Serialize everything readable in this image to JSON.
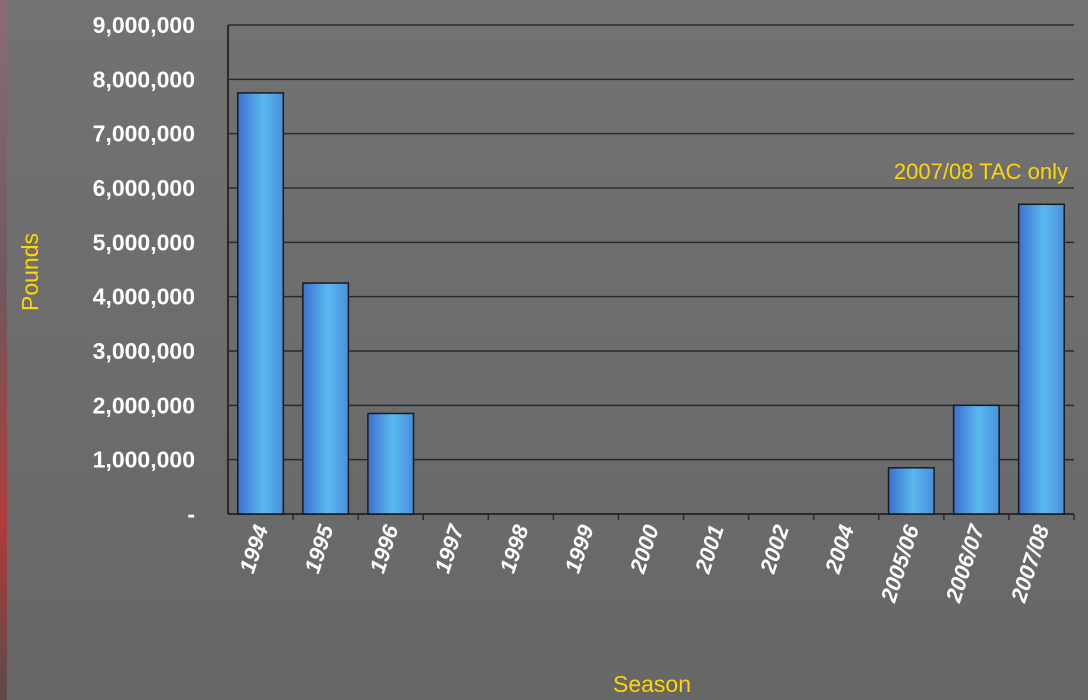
{
  "colors": {
    "background": "#6e6e6e",
    "gridline": "#2a2a2a",
    "bar_fill_dark": "#3d6fd0",
    "bar_fill_light": "#5ab9ee",
    "bar_border": "#1a1a1a",
    "label_yellow": "#ffd700",
    "tick_text": "#ffffff"
  },
  "chart_data": {
    "type": "bar",
    "title": "",
    "xlabel": "Season",
    "ylabel": "Pounds",
    "ylim": [
      0,
      9000000
    ],
    "y_ticks": [
      0,
      1000000,
      2000000,
      3000000,
      4000000,
      5000000,
      6000000,
      7000000,
      8000000,
      9000000
    ],
    "y_tick_labels": [
      "-",
      "1,000,000",
      "2,000,000",
      "3,000,000",
      "4,000,000",
      "5,000,000",
      "6,000,000",
      "7,000,000",
      "8,000,000",
      "9,000,000"
    ],
    "categories": [
      "1994",
      "1995",
      "1996",
      "1997",
      "1998",
      "1999",
      "2000",
      "2001",
      "2002",
      "2004",
      "2005/06",
      "2006/07",
      "2007/08"
    ],
    "values": [
      7750000,
      4250000,
      1850000,
      0,
      0,
      0,
      0,
      0,
      0,
      0,
      850000,
      2000000,
      5700000
    ],
    "grid": true,
    "legend": "none",
    "annotations": [
      {
        "text": "2007/08 TAC only",
        "category": "2007/08"
      }
    ]
  }
}
